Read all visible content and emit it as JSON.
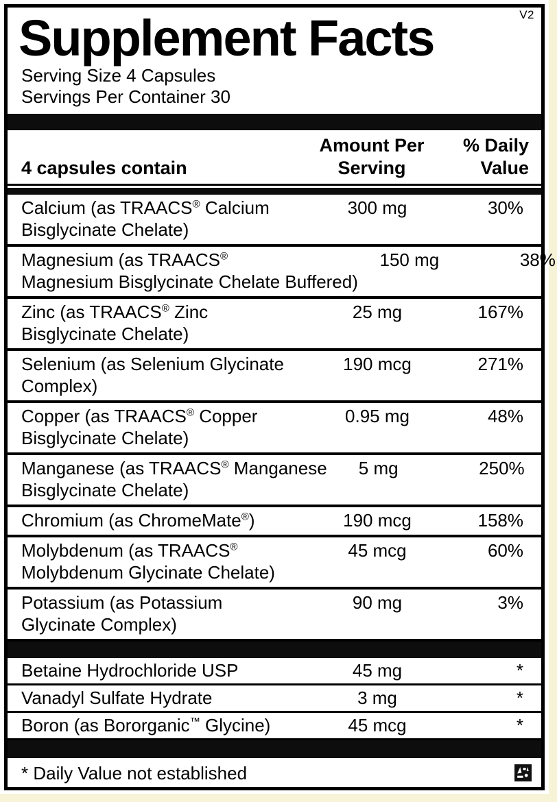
{
  "version_tag": "V2",
  "title": "Supplement Facts",
  "serving": {
    "size": "Serving Size 4 Capsules",
    "per_container": "Servings Per Container 30"
  },
  "table": {
    "header": {
      "contain": "4 capsules contain",
      "amount": "Amount Per\nServing",
      "dv": "% Daily\nValue"
    },
    "rows": [
      {
        "name": "Calcium (as TRAACS® Calcium\nBisglycinate Chelate)",
        "amount": "300 mg",
        "dv": "30%"
      },
      {
        "name": "Magnesium (as TRAACS®\nMagnesium Bisglycinate Chelate Buffered)",
        "amount": "150 mg",
        "dv": "38%"
      },
      {
        "name": "Zinc (as TRAACS® Zinc\nBisglycinate Chelate)",
        "amount": "25 mg",
        "dv": "167%"
      },
      {
        "name": "Selenium (as Selenium Glycinate\nComplex)",
        "amount": "190 mcg",
        "dv": "271%"
      },
      {
        "name": "Copper (as TRAACS® Copper\nBisglycinate Chelate)",
        "amount": "0.95 mg",
        "dv": "48%"
      },
      {
        "name": "Manganese (as TRAACS® Manganese\nBisglycinate Chelate)",
        "amount": "5 mg",
        "dv": "250%"
      },
      {
        "name": "Chromium (as ChromeMate®)",
        "amount": "190 mcg",
        "dv": "158%"
      },
      {
        "name": "Molybdenum (as TRAACS®\nMolybdenum Glycinate Chelate)",
        "amount": "45 mcg",
        "dv": "60%"
      },
      {
        "name": "Potassium (as Potassium\nGlycinate Complex)",
        "amount": "90 mg",
        "dv": "3%"
      }
    ],
    "rows_other": [
      {
        "name": "Betaine Hydrochloride USP",
        "amount": "45 mg",
        "dv": "*"
      },
      {
        "name": "Vanadyl Sulfate Hydrate",
        "amount": "3 mg",
        "dv": "*"
      },
      {
        "name": "Boron (as Bororganic™ Glycine)",
        "amount": "45 mcg",
        "dv": "*"
      }
    ]
  },
  "footnote": "* Daily Value not established",
  "icons": {
    "certification_mark": "certification-mark"
  },
  "colors": {
    "text": "#000000",
    "label_background": "#ffffff",
    "bar": "#0d0d0d",
    "page_background": "#f6f3d6"
  }
}
